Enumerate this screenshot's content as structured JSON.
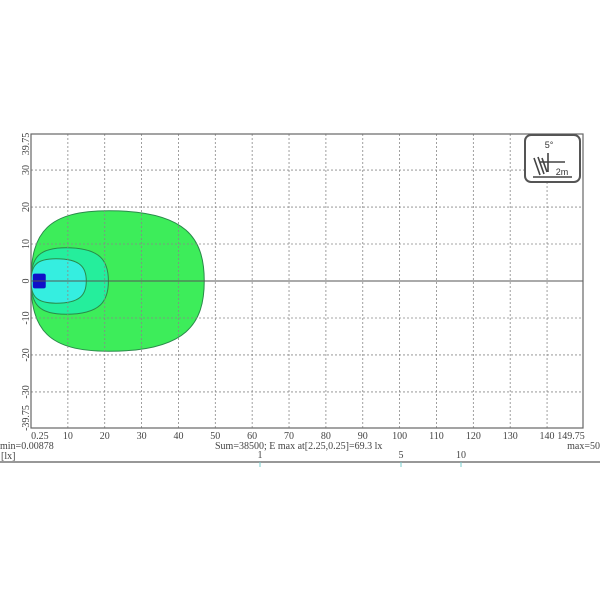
{
  "chart_data": {
    "type": "heatmap",
    "title": "",
    "xlim": [
      0.25,
      149.75
    ],
    "ylim": [
      -39.75,
      39.75
    ],
    "x_ticks": [
      "0.25",
      "10",
      "20",
      "30",
      "40",
      "50",
      "60",
      "70",
      "80",
      "90",
      "100",
      "110",
      "120",
      "130",
      "140",
      "149.75"
    ],
    "x_tick_values": [
      0.25,
      10,
      20,
      30,
      40,
      50,
      60,
      70,
      80,
      90,
      100,
      110,
      120,
      130,
      140,
      149.75
    ],
    "y_ticks": [
      "39.75",
      "30",
      "20",
      "10",
      "0",
      "-10",
      "-20",
      "-30",
      "-39.75"
    ],
    "y_tick_values": [
      39.75,
      30,
      20,
      10,
      0,
      -10,
      -20,
      -30,
      -39.75
    ],
    "grid": true,
    "contours": [
      {
        "level": 1,
        "color": "#3ded5a",
        "x_extent": [
          0,
          47
        ],
        "y_extent": [
          -19,
          19
        ]
      },
      {
        "level": 5,
        "color": "#25ee9c",
        "x_extent": [
          0,
          21
        ],
        "y_extent": [
          -9,
          9
        ]
      },
      {
        "level": 10,
        "color": "#35eee0",
        "x_extent": [
          0,
          15
        ],
        "y_extent": [
          -6,
          6
        ]
      },
      {
        "level": 50,
        "color": "#1010c8",
        "x_extent": [
          0.5,
          4
        ],
        "y_extent": [
          -2,
          2
        ]
      }
    ],
    "min_label": "min=0.00878",
    "sum_label": "Sum=38500; E max at[2.25,0.25]=69.3 lx",
    "max_label": "max=50",
    "unit_label": "[lx]",
    "scale_ticks": [
      "1",
      "5",
      "10"
    ],
    "scale_tick_values": [
      1,
      5,
      10
    ],
    "badge": {
      "angle": "5°",
      "distance": "2m"
    }
  }
}
